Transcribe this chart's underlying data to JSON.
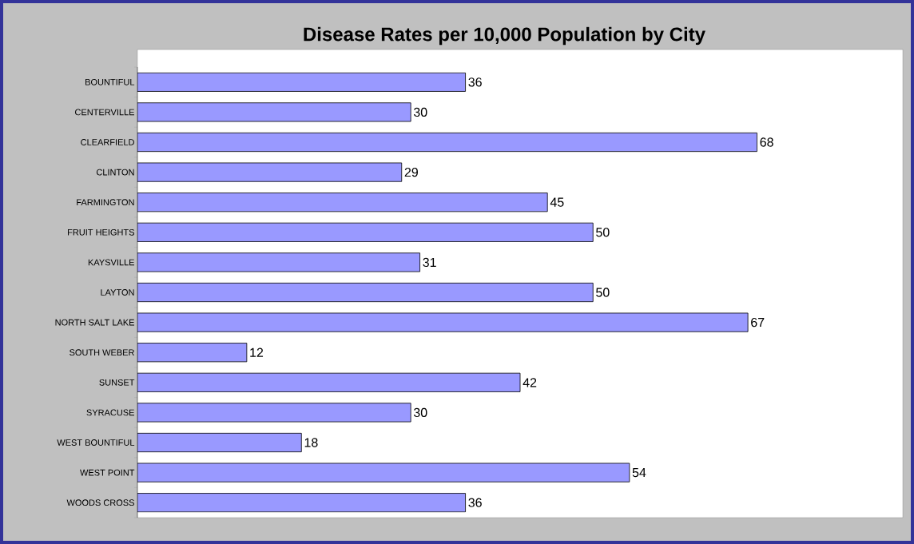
{
  "chart_data": {
    "type": "bar",
    "orientation": "horizontal",
    "title": "Disease Rates per 10,000 Population by City",
    "categories": [
      "BOUNTIFUL",
      "CENTERVILLE",
      "CLEARFIELD",
      "CLINTON",
      "FARMINGTON",
      "FRUIT HEIGHTS",
      "KAYSVILLE",
      "LAYTON",
      "NORTH SALT LAKE",
      "SOUTH WEBER",
      "SUNSET",
      "SYRACUSE",
      "WEST BOUNTIFUL",
      "WEST POINT",
      "WOODS CROSS"
    ],
    "values": [
      36,
      30,
      68,
      29,
      45,
      50,
      31,
      50,
      67,
      12,
      42,
      30,
      18,
      54,
      36
    ],
    "color": "#9999ff",
    "data_labels": true,
    "xlim": [
      0,
      84
    ]
  }
}
